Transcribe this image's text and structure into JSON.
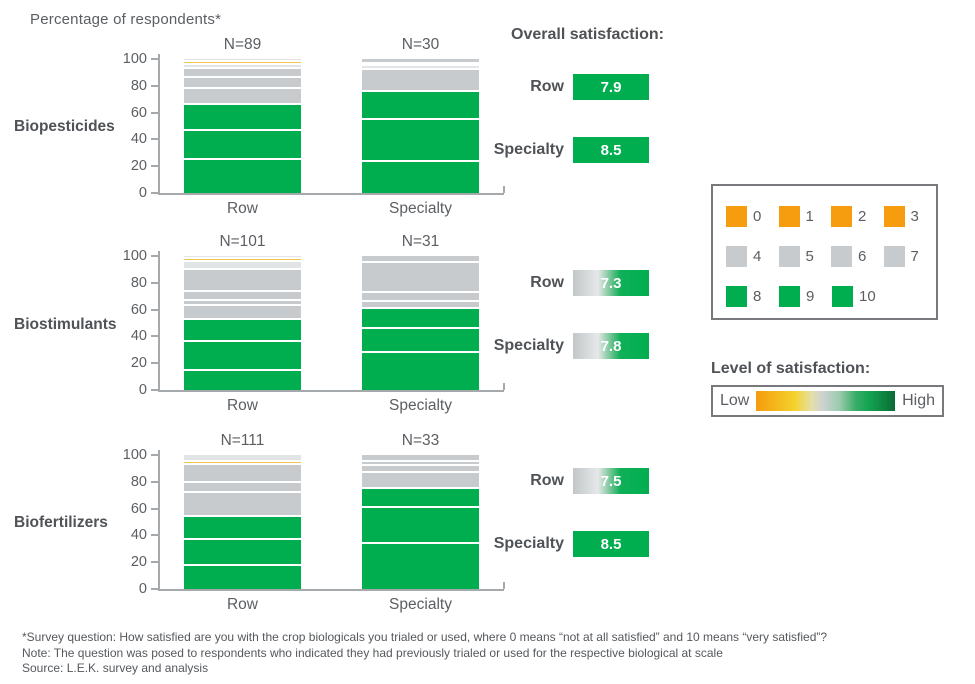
{
  "header": {
    "title": "Percentage of respondents*",
    "overall_heading": "Overall satisfaction:"
  },
  "colors": {
    "green": "#00AE50",
    "gray": "#C7CBCE",
    "pale": "#E2E5E6",
    "gold": "#F3C64F",
    "orange": "#F59C0F",
    "dark_green": "#0A6B34",
    "text": "#54565A"
  },
  "chart_data": [
    {
      "type": "bar",
      "stacked": true,
      "group_label": "Biopesticides",
      "categories": [
        "Row",
        "Specialty"
      ],
      "ylim": [
        0,
        100
      ],
      "yticks": [
        "0",
        "20",
        "40",
        "60",
        "80",
        "100"
      ],
      "legend_note": "segment colors map to satisfaction scores 0-10; values are percent of respondents, listed bottom to top",
      "bars": [
        {
          "category": "Row",
          "n_label": "N=89",
          "segments": [
            {
              "value": 26,
              "color": "green"
            },
            {
              "value": 22,
              "color": "green"
            },
            {
              "value": 19,
              "color": "green"
            },
            {
              "value": 12,
              "color": "gray"
            },
            {
              "value": 8,
              "color": "gray"
            },
            {
              "value": 7,
              "color": "gray"
            },
            {
              "value": 3,
              "color": "pale"
            },
            {
              "value": 2,
              "color": "gold"
            },
            {
              "value": 1,
              "color": "pale"
            }
          ]
        },
        {
          "category": "Specialty",
          "n_label": "N=30",
          "segments": [
            {
              "value": 25,
              "color": "green"
            },
            {
              "value": 31,
              "color": "green"
            },
            {
              "value": 21,
              "color": "green"
            },
            {
              "value": 16,
              "color": "gray"
            },
            {
              "value": 3,
              "color": "pale"
            },
            {
              "value": 2,
              "color": "gray"
            },
            {
              "value": 2,
              "color": "gray"
            }
          ]
        }
      ],
      "satisfaction": [
        {
          "label": "Row",
          "value": "7.9",
          "fill": "solid"
        },
        {
          "label": "Specialty",
          "value": "8.5",
          "fill": "solid"
        }
      ]
    },
    {
      "type": "bar",
      "stacked": true,
      "group_label": "Biostimulants",
      "categories": [
        "Row",
        "Specialty"
      ],
      "ylim": [
        0,
        100
      ],
      "yticks": [
        "0",
        "20",
        "40",
        "60",
        "80",
        "100"
      ],
      "bars": [
        {
          "category": "Row",
          "n_label": "N=101",
          "segments": [
            {
              "value": 16,
              "color": "green"
            },
            {
              "value": 21,
              "color": "green"
            },
            {
              "value": 17,
              "color": "green"
            },
            {
              "value": 10,
              "color": "gray"
            },
            {
              "value": 4,
              "color": "gray"
            },
            {
              "value": 7,
              "color": "gray"
            },
            {
              "value": 16,
              "color": "gray"
            },
            {
              "value": 6,
              "color": "pale"
            },
            {
              "value": 2,
              "color": "gold"
            },
            {
              "value": 1,
              "color": "pale"
            }
          ]
        },
        {
          "category": "Specialty",
          "n_label": "N=31",
          "segments": [
            {
              "value": 29,
              "color": "green"
            },
            {
              "value": 18,
              "color": "green"
            },
            {
              "value": 15,
              "color": "green"
            },
            {
              "value": 5,
              "color": "gray"
            },
            {
              "value": 7,
              "color": "gray"
            },
            {
              "value": 22,
              "color": "gray"
            },
            {
              "value": 4,
              "color": "gray"
            }
          ]
        }
      ],
      "satisfaction": [
        {
          "label": "Row",
          "value": "7.3",
          "fill": "fade"
        },
        {
          "label": "Specialty",
          "value": "7.8",
          "fill": "fade"
        }
      ]
    },
    {
      "type": "bar",
      "stacked": true,
      "group_label": "Biofertilizers",
      "categories": [
        "Row",
        "Specialty"
      ],
      "ylim": [
        0,
        100
      ],
      "yticks": [
        "0",
        "20",
        "40",
        "60",
        "80",
        "100"
      ],
      "bars": [
        {
          "category": "Row",
          "n_label": "N=111",
          "segments": [
            {
              "value": 19,
              "color": "green"
            },
            {
              "value": 19,
              "color": "green"
            },
            {
              "value": 17,
              "color": "green"
            },
            {
              "value": 18,
              "color": "gray"
            },
            {
              "value": 8,
              "color": "gray"
            },
            {
              "value": 13,
              "color": "gray"
            },
            {
              "value": 2,
              "color": "gold"
            },
            {
              "value": 4,
              "color": "pale"
            }
          ]
        },
        {
          "category": "Specialty",
          "n_label": "N=33",
          "segments": [
            {
              "value": 35,
              "color": "green"
            },
            {
              "value": 27,
              "color": "green"
            },
            {
              "value": 14,
              "color": "green"
            },
            {
              "value": 12,
              "color": "gray"
            },
            {
              "value": 5,
              "color": "gray"
            },
            {
              "value": 3,
              "color": "gray"
            },
            {
              "value": 4,
              "color": "gray"
            }
          ]
        }
      ],
      "satisfaction": [
        {
          "label": "Row",
          "value": "7.5",
          "fill": "fade"
        },
        {
          "label": "Specialty",
          "value": "8.5",
          "fill": "solid"
        }
      ]
    }
  ],
  "score_legend": {
    "rows": [
      {
        "color": "orange",
        "scores": [
          "0",
          "1",
          "2",
          "3"
        ]
      },
      {
        "color": "gray",
        "scores": [
          "4",
          "5",
          "6",
          "7"
        ]
      },
      {
        "color": "green",
        "scores": [
          "8",
          "9",
          "10"
        ]
      }
    ]
  },
  "satisfaction_scale": {
    "title": "Level of satisfaction:",
    "low_label": "Low",
    "high_label": "High"
  },
  "footnotes": [
    "*Survey question: How satisfied are you with the crop biologicals you trialed or used, where 0 means “not at all satisfied” and 10 means “very satisfied”?",
    "Note: The question was posed to respondents who indicated they had previously trialed or used for the respective biological at scale",
    "Source: L.E.K. survey and analysis"
  ]
}
